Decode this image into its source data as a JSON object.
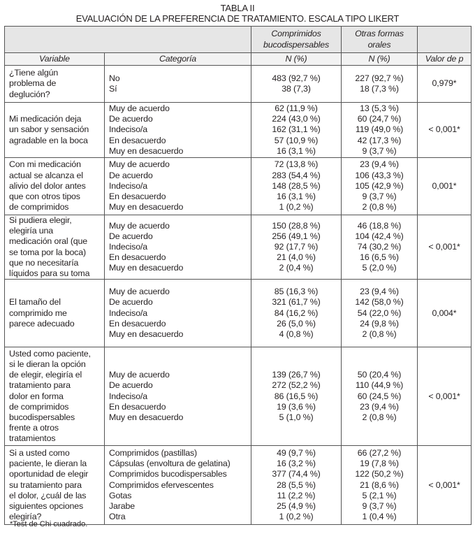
{
  "table_label": "TABLA II",
  "table_title": "EVALUACIÓN DE LA PREFERENCIA DE TRATAMIENTO. ESCALA TIPO LIKERT",
  "header": {
    "group1": "Comprimidos bucodispersables",
    "group2": "Otras formas orales",
    "variable": "Variable",
    "categoria": "Categoría",
    "n1": "N (%)",
    "n2": "N (%)",
    "p": "Valor de p"
  },
  "rows": [
    {
      "variable": "¿Tiene algún\nproblema de\ndeglución?",
      "categories": [
        "No",
        "Sí"
      ],
      "bucodispersables": [
        "483 (92,7 %)",
        "38 (7,3)"
      ],
      "otras": [
        "227 (92,7 %)",
        "18 (7,3 %)"
      ],
      "p": "0,979*"
    },
    {
      "variable": "Mi medicación deja\nun sabor y sensación\nagradable en la boca",
      "categories": [
        "Muy de acuerdo",
        "De acuerdo",
        "Indeciso/a",
        "En desacuerdo",
        "Muy en desacuerdo"
      ],
      "bucodispersables": [
        "62 (11,9 %)",
        "224 (43,0 %)",
        "162 (31,1 %)",
        "57 (10,9 %)",
        "16 (3,1 %)"
      ],
      "otras": [
        "13 (5,3 %)",
        "60 (24,7 %)",
        "119 (49,0 %)",
        "42 (17,3 %)",
        "9 (3,7 %)"
      ],
      "p": "< 0,001*"
    },
    {
      "variable": "Con mi medicación\nactual se alcanza el\nalivio del dolor antes\nque con otros tipos\nde comprimidos",
      "categories": [
        "Muy de acuerdo",
        "De acuerdo",
        "Indeciso/a",
        "En desacuerdo",
        "Muy en desacuerdo"
      ],
      "bucodispersables": [
        "72 (13,8 %)",
        "283 (54,4 %)",
        "148 (28,5 %)",
        "16 (3,1 %)",
        "1 (0,2 %)"
      ],
      "otras": [
        "23 (9,4 %)",
        "106 (43,3 %)",
        "105 (42,9 %)",
        "9 (3,7 %)",
        "2 (0,8 %)"
      ],
      "p": "0,001*"
    },
    {
      "variable": "Si pudiera elegir,\nelegiría una\nmedicación oral (que\nse toma por la boca)\nque no necesitaría\nlíquidos para su toma",
      "categories": [
        "Muy de acuerdo",
        "De acuerdo",
        "Indeciso/a",
        "En desacuerdo",
        "Muy en desacuerdo"
      ],
      "bucodispersables": [
        "150 (28,8 %)",
        "256 (49,1 %)",
        "92 (17,7 %)",
        "21 (4,0 %)",
        "2 (0,4 %)"
      ],
      "otras": [
        "46 (18,8 %)",
        "104 (42,4 %)",
        "74 (30,2 %)",
        "16 (6,5 %)",
        "5 (2,0 %)"
      ],
      "p": "< 0,001*"
    },
    {
      "variable": "El tamaño del\ncomprimido me\nparece adecuado",
      "categories": [
        "Muy de acuerdo",
        "De acuerdo",
        "Indeciso/a",
        "En desacuerdo",
        "Muy en desacuerdo"
      ],
      "bucodispersables": [
        "85 (16,3 %)",
        "321 (61,7 %)",
        "84 (16,2 %)",
        "26 (5,0 %)",
        "4 (0,8 %)"
      ],
      "otras": [
        "23 (9,4 %)",
        "142 (58,0 %)",
        "54 (22,0 %)",
        "24 (9,8 %)",
        "2 (0,8 %)"
      ],
      "p": "0,004*"
    },
    {
      "variable": "Usted como paciente,\nsi le dieran la opción\nde elegir, elegiría el\ntratamiento para\ndolor en forma\nde comprimidos\nbucodispersables\nfrente a otros\ntratamientos",
      "categories": [
        "Muy de acuerdo",
        "De acuerdo",
        "Indeciso/a",
        "En desacuerdo",
        "Muy en desacuerdo"
      ],
      "bucodispersables": [
        "139 (26,7 %)",
        "272 (52,2 %)",
        "86 (16,5 %)",
        "19 (3,6 %)",
        "5 (1,0 %)"
      ],
      "otras": [
        "50 (20,4 %)",
        "110 (44,9 %)",
        "60 (24,5 %)",
        "23 (9,4 %)",
        "2 (0,8 %)"
      ],
      "p": "< 0,001*"
    },
    {
      "variable": "Si a usted como\npaciente, le dieran la\noportunidad de elegir\nsu tratamiento para\nel dolor, ¿cuál de las\nsiguientes opciones\nelegiría?",
      "categories": [
        "Comprimidos (pastillas)",
        "Cápsulas (envoltura de gelatina)",
        "Comprimidos bucodispersables",
        "Comprimidos efervescentes",
        "Gotas",
        "Jarabe",
        "Otra"
      ],
      "bucodispersables": [
        "49 (9,7 %)",
        "16 (3,2 %)",
        "377 (74,4 %)",
        "28 (5,5 %)",
        "11 (2,2 %)",
        "25 (4,9 %)",
        "1 (0,2 %)"
      ],
      "otras": [
        "66 (27,2 %)",
        "19 (7,8 %)",
        "122 (50,2 %)",
        "21 (8,6 %)",
        "5 (2,1 %)",
        "9 (3,7 %)",
        "1 (0,4 %)"
      ],
      "p": "< 0,001*"
    }
  ],
  "footnote": "*Test de Chi cuadrado."
}
